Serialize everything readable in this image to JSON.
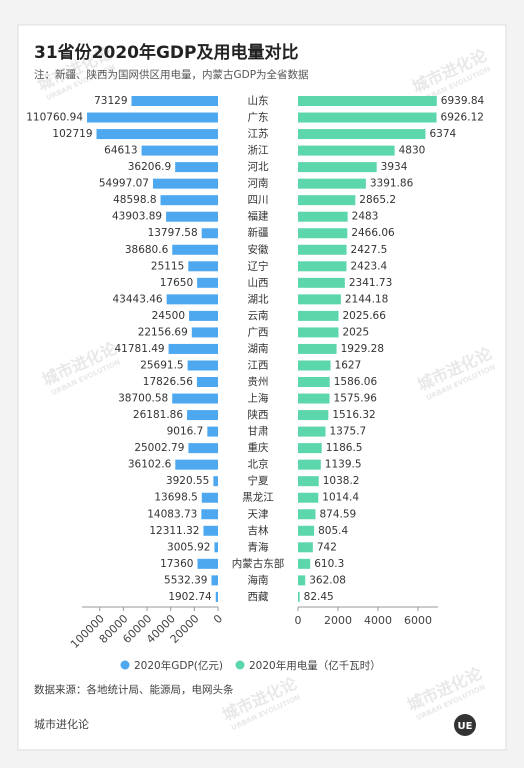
{
  "chart_data": {
    "type": "butterfly",
    "title": "31省份2020年GDP及用电量对比",
    "subtitle": "注：新疆、陕西为国网供区用电量，内蒙古GDP为全省数据",
    "categories": [
      "山东",
      "广东",
      "江苏",
      "浙江",
      "河北",
      "河南",
      "四川",
      "福建",
      "新疆",
      "安徽",
      "辽宁",
      "山西",
      "湖北",
      "云南",
      "广西",
      "湖南",
      "江西",
      "贵州",
      "上海",
      "陕西",
      "甘肃",
      "重庆",
      "北京",
      "宁夏",
      "黑龙江",
      "天津",
      "吉林",
      "青海",
      "内蒙古东部",
      "海南",
      "西藏"
    ],
    "series": [
      {
        "name": "2020年GDP(亿元)",
        "color": "#4ea8ef",
        "values": [
          73129,
          110760.94,
          102719,
          64613,
          36206.9,
          54997.07,
          48598.8,
          43903.89,
          13797.58,
          38680.6,
          25115,
          17650,
          43443.46,
          24500,
          22156.69,
          41781.49,
          25691.5,
          17826.56,
          38700.58,
          26181.86,
          9016.7,
          25002.79,
          36102.6,
          3920.55,
          13698.5,
          14083.73,
          12311.32,
          3005.92,
          17360,
          5532.39,
          1902.74
        ],
        "xlim": [
          0,
          115000
        ],
        "xticks": [
          0,
          20000,
          40000,
          60000,
          80000,
          100000
        ]
      },
      {
        "name": "2020年用电量（亿千瓦时）",
        "color": "#5cd6ab",
        "values": [
          6939.84,
          6926.12,
          6374,
          4830,
          3934,
          3391.86,
          2865.2,
          2483,
          2466.06,
          2427.5,
          2423.4,
          2341.73,
          2144.18,
          2025.66,
          2025,
          1929.28,
          1627,
          1586.06,
          1575.96,
          1516.32,
          1375.7,
          1186.5,
          1139.5,
          1038.2,
          1014.4,
          874.59,
          805.4,
          742,
          610.3,
          362.08,
          82.45
        ],
        "xlim": [
          0,
          7000
        ],
        "xticks": [
          0,
          2000,
          4000,
          6000
        ]
      }
    ]
  },
  "source": "数据来源：各地统计局、能源局，电网头条",
  "brand": "城市进化论",
  "logo": "UE",
  "watermark": {
    "text": "城市进化论",
    "subtext": "URBAN EVOLUTION"
  }
}
